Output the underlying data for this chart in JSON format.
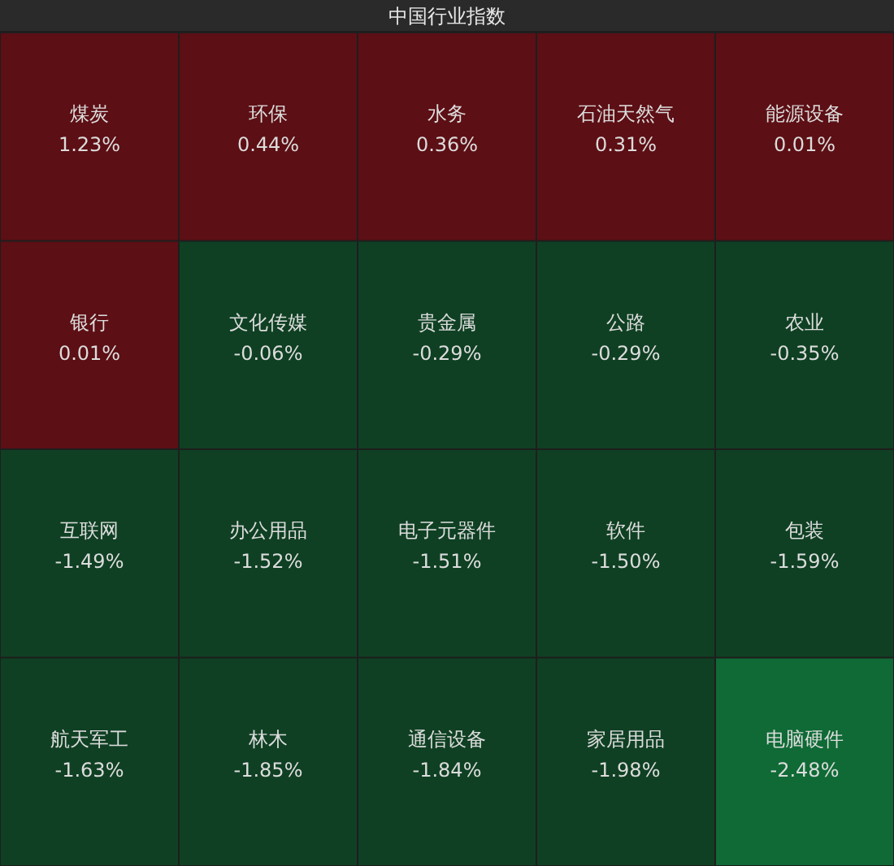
{
  "chart_data": {
    "type": "other",
    "title": "中国行业指数",
    "categories": [
      "煤炭",
      "环保",
      "水务",
      "石油天然气",
      "能源设备",
      "银行",
      "文化传媒",
      "贵金属",
      "公路",
      "农业",
      "互联网",
      "办公用品",
      "电子元器件",
      "软件",
      "包装",
      "航天军工",
      "林木",
      "通信设备",
      "家居用品",
      "电脑硬件"
    ],
    "values": [
      1.23,
      0.44,
      0.36,
      0.31,
      0.01,
      0.01,
      -0.06,
      -0.29,
      -0.29,
      -0.35,
      -1.49,
      -1.52,
      -1.51,
      -1.5,
      -1.59,
      -1.63,
      -1.85,
      -1.84,
      -1.98,
      -2.48
    ],
    "value_labels": [
      "1.23%",
      "0.44%",
      "0.36%",
      "0.31%",
      "0.01%",
      "0.01%",
      "-0.06%",
      "-0.29%",
      "-0.29%",
      "-0.35%",
      "-1.49%",
      "-1.52%",
      "-1.51%",
      "-1.50%",
      "-1.59%",
      "-1.63%",
      "-1.85%",
      "-1.84%",
      "-1.98%",
      "-2.48%"
    ],
    "colors": [
      "#5c0f14",
      "#5c0f14",
      "#5c0f14",
      "#5c0f14",
      "#5c0f14",
      "#5c0f14",
      "#0f4023",
      "#0f4023",
      "#0f4023",
      "#0f4023",
      "#0f4023",
      "#0f4023",
      "#0f4023",
      "#0f4023",
      "#0f4023",
      "#0f4023",
      "#0f4023",
      "#0f4023",
      "#0f4023",
      "#0f6a35"
    ]
  }
}
